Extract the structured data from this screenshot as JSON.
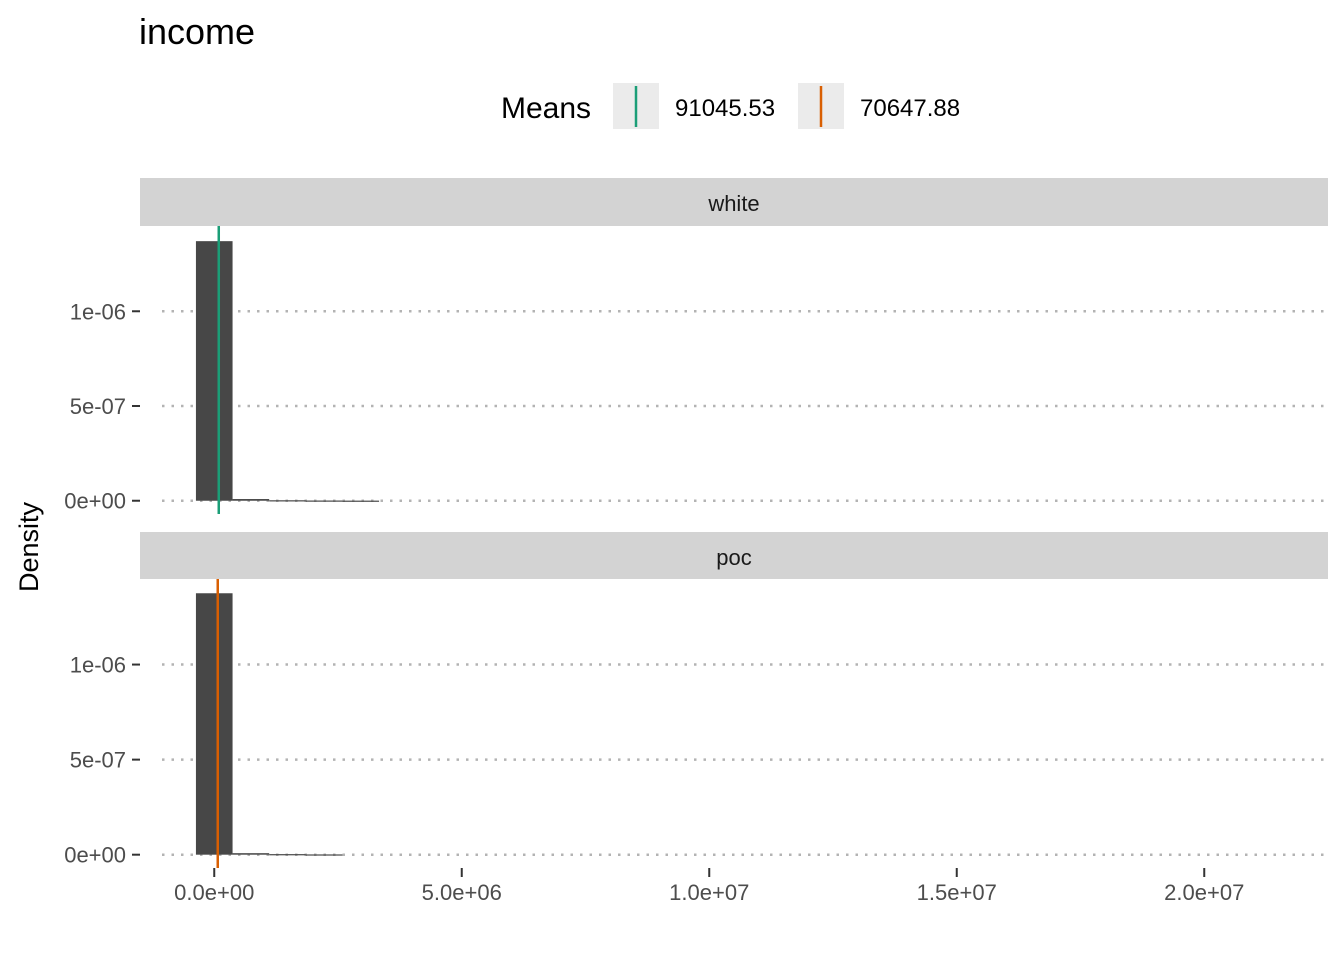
{
  "chart_data": {
    "type": "histogram",
    "title": "income",
    "ylabel": "Density",
    "xlabel": "",
    "legend": {
      "title": "Means",
      "position": "top",
      "entries": [
        {
          "label": "91045.53",
          "color": "#1b9e77"
        },
        {
          "label": "70647.88",
          "color": "#d95f02"
        }
      ]
    },
    "xlim": [
      -1500000,
      22500000
    ],
    "ylim": [
      -7e-08,
      1.45e-06
    ],
    "x_ticks": [
      {
        "value": 0,
        "label": "0.0e+00"
      },
      {
        "value": 5000000,
        "label": "5.0e+06"
      },
      {
        "value": 10000000,
        "label": "1.0e+07"
      },
      {
        "value": 15000000,
        "label": "1.5e+07"
      },
      {
        "value": 20000000,
        "label": "2.0e+07"
      }
    ],
    "y_ticks": [
      {
        "value": 0,
        "label": "0e+00"
      },
      {
        "value": 5e-07,
        "label": "5e-07"
      },
      {
        "value": 1e-06,
        "label": "1e-06"
      }
    ],
    "grid": "horizontal dotted",
    "bar_color": "#474747",
    "bin_width": 740000,
    "panels": [
      {
        "strip": "white",
        "mean": 91045.53,
        "mean_color": "#1b9e77",
        "bins": [
          {
            "x0": -370000,
            "density": 1.37e-06
          },
          {
            "x0": 370000,
            "density": 9e-09
          },
          {
            "x0": 1110000,
            "density": 2.5e-09
          },
          {
            "x0": 1850000,
            "density": 1.2e-09
          },
          {
            "x0": 2590000,
            "density": 6e-10
          }
        ]
      },
      {
        "strip": "poc",
        "mean": 70647.88,
        "mean_color": "#d95f02",
        "bins": [
          {
            "x0": -370000,
            "density": 1.375e-06
          },
          {
            "x0": 370000,
            "density": 8e-09
          },
          {
            "x0": 1110000,
            "density": 3e-09
          },
          {
            "x0": 1850000,
            "density": 1.5e-09
          }
        ]
      }
    ]
  }
}
